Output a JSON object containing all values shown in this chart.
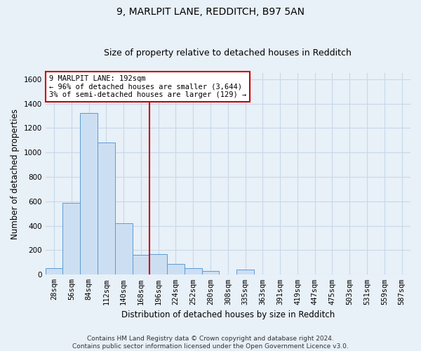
{
  "title": "9, MARLPIT LANE, REDDITCH, B97 5AN",
  "subtitle": "Size of property relative to detached houses in Redditch",
  "xlabel": "Distribution of detached houses by size in Redditch",
  "ylabel": "Number of detached properties",
  "bar_labels": [
    "28sqm",
    "56sqm",
    "84sqm",
    "112sqm",
    "140sqm",
    "168sqm",
    "196sqm",
    "224sqm",
    "252sqm",
    "280sqm",
    "308sqm",
    "335sqm",
    "363sqm",
    "391sqm",
    "419sqm",
    "447sqm",
    "475sqm",
    "503sqm",
    "531sqm",
    "559sqm",
    "587sqm"
  ],
  "bar_values": [
    55,
    590,
    1320,
    1080,
    420,
    160,
    170,
    90,
    55,
    30,
    0,
    40,
    0,
    0,
    0,
    0,
    0,
    0,
    0,
    0,
    0
  ],
  "bar_color": "#ccdff2",
  "bar_edge_color": "#5b9bd5",
  "vline_x": 5.5,
  "vline_color": "#cc0000",
  "annotation_text": "9 MARLPIT LANE: 192sqm\n← 96% of detached houses are smaller (3,644)\n3% of semi-detached houses are larger (129) →",
  "annotation_box_color": "white",
  "annotation_box_edge": "#cc0000",
  "ylim": [
    0,
    1650
  ],
  "yticks": [
    0,
    200,
    400,
    600,
    800,
    1000,
    1200,
    1400,
    1600
  ],
  "footer": "Contains HM Land Registry data © Crown copyright and database right 2024.\nContains public sector information licensed under the Open Government Licence v3.0.",
  "background_color": "#e8f0f8",
  "plot_bg_color": "#e8f0f8",
  "grid_color": "#c8d8e8",
  "title_fontsize": 10,
  "subtitle_fontsize": 9,
  "axis_label_fontsize": 8.5,
  "tick_fontsize": 7.5,
  "footer_fontsize": 6.5,
  "annot_fontsize": 7.5
}
